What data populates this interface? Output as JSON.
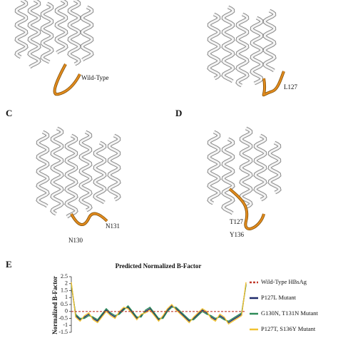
{
  "panels": {
    "c": {
      "label": "C",
      "residues": [
        "N131",
        "N130"
      ]
    },
    "d": {
      "label": "D",
      "residues": [
        "T127",
        "Y136"
      ]
    },
    "a": {
      "residues": [
        "Wild-Type"
      ]
    },
    "b": {
      "residues": [
        "L127"
      ]
    },
    "e": {
      "label": "E"
    }
  },
  "chart_data": {
    "type": "line",
    "title": "Predicted Normalized B-Factor",
    "y_label": "Normalized B-Factor",
    "ylim": [
      -1.5,
      2.5
    ],
    "yticks": [
      2.5,
      2,
      1.5,
      1,
      0.5,
      0,
      -0.5,
      -1,
      -1.5
    ],
    "series": [
      {
        "name": "Wild-Type HBsAg",
        "color": "#c0392b",
        "dashed": true,
        "values": [
          0,
          0,
          0,
          0,
          0,
          0,
          0,
          0,
          0,
          0,
          0,
          0,
          0,
          0,
          0,
          0,
          0,
          0,
          0,
          0,
          0,
          0,
          0,
          0,
          0,
          0,
          0,
          0,
          0,
          0,
          0,
          0,
          0,
          0,
          0,
          0,
          0,
          0,
          0,
          0,
          0
        ]
      },
      {
        "name": "P127L Mutant",
        "color": "#1f2a6b",
        "values": [
          2.0,
          -0.3,
          -0.6,
          -0.4,
          -0.2,
          -0.5,
          -0.7,
          -0.3,
          0.1,
          -0.2,
          -0.4,
          -0.1,
          0.2,
          0.3,
          -0.1,
          -0.5,
          -0.3,
          0.0,
          0.2,
          -0.2,
          -0.6,
          -0.4,
          0.1,
          0.4,
          0.2,
          -0.1,
          -0.4,
          -0.7,
          -0.5,
          -0.2,
          0.1,
          -0.1,
          -0.4,
          -0.6,
          -0.3,
          -0.5,
          -0.8,
          -0.6,
          -0.4,
          -0.2,
          2.0
        ]
      },
      {
        "name": "G130N, T131N Mutant",
        "color": "#2e8b57",
        "values": [
          1.9,
          -0.2,
          -0.5,
          -0.5,
          -0.3,
          -0.4,
          -0.6,
          -0.2,
          0.2,
          -0.1,
          -0.3,
          -0.2,
          0.1,
          0.4,
          0.0,
          -0.4,
          -0.4,
          0.1,
          0.3,
          -0.1,
          -0.5,
          -0.5,
          0.0,
          0.3,
          0.3,
          0.0,
          -0.3,
          -0.6,
          -0.6,
          -0.3,
          0.0,
          -0.2,
          -0.3,
          -0.5,
          -0.4,
          -0.6,
          -0.7,
          -0.5,
          -0.3,
          -0.1,
          1.9
        ]
      },
      {
        "name": "P127T, S136Y Mutant",
        "color": "#f1c232",
        "values": [
          2.1,
          -0.4,
          -0.7,
          -0.3,
          -0.1,
          -0.6,
          -0.8,
          -0.4,
          0.0,
          -0.3,
          -0.5,
          0.0,
          0.3,
          0.2,
          -0.2,
          -0.6,
          -0.2,
          -0.1,
          0.1,
          -0.3,
          -0.7,
          -0.3,
          0.2,
          0.5,
          0.1,
          -0.2,
          -0.5,
          -0.8,
          -0.4,
          -0.1,
          0.2,
          0.0,
          -0.5,
          -0.7,
          -0.2,
          -0.4,
          -0.9,
          -0.7,
          -0.5,
          -0.3,
          2.1
        ]
      }
    ]
  }
}
